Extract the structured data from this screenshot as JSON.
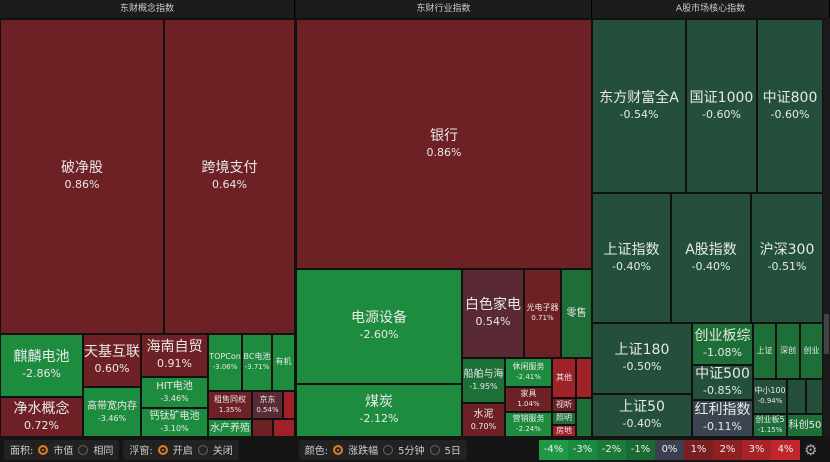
{
  "headers": [
    "东财概念指数",
    "东财行业指数",
    "A股市场核心指数"
  ],
  "chart_data": {
    "type": "treemap",
    "groups": [
      {
        "name": "东财概念指数",
        "tiles": [
          {
            "label": "破净股",
            "value": "0.86%"
          },
          {
            "label": "跨境支付",
            "value": "0.64%"
          },
          {
            "label": "麒麟电池",
            "value": "-2.86%"
          },
          {
            "label": "净水概念",
            "value": "0.72%"
          },
          {
            "label": "天基互联",
            "value": "0.60%"
          },
          {
            "label": "高带宽内存",
            "value": "-3.46%"
          },
          {
            "label": "海南自贸",
            "value": "0.91%"
          },
          {
            "label": "HIT电池",
            "value": "-3.46%"
          },
          {
            "label": "钙钛矿电池",
            "value": "-3.10%"
          },
          {
            "label": "TOPCon",
            "value": "-3.06%"
          },
          {
            "label": "BC电池",
            "value": "-3.71%"
          },
          {
            "label": "有机",
            "value": ""
          },
          {
            "label": "租售同权",
            "value": "1.35%"
          },
          {
            "label": "京东",
            "value": "0.54%"
          },
          {
            "label": "水产养殖",
            "value": ""
          }
        ]
      },
      {
        "name": "东财行业指数",
        "tiles": [
          {
            "label": "银行",
            "value": "0.86%"
          },
          {
            "label": "电源设备",
            "value": "-2.60%"
          },
          {
            "label": "煤炭",
            "value": "-2.12%"
          },
          {
            "label": "白色家电",
            "value": "0.54%"
          },
          {
            "label": "光电子器",
            "value": "0.71%"
          },
          {
            "label": "零售",
            "value": ""
          },
          {
            "label": "船舶与海",
            "value": "-1.95%"
          },
          {
            "label": "水泥",
            "value": "0.70%"
          },
          {
            "label": "休闲服务",
            "value": "-2.41%"
          },
          {
            "label": "家具",
            "value": "1.04%"
          },
          {
            "label": "营销服务",
            "value": "-2.24%"
          },
          {
            "label": "其他",
            "value": ""
          },
          {
            "label": "视听",
            "value": ""
          },
          {
            "label": "照明",
            "value": ""
          },
          {
            "label": "房地",
            "value": ""
          }
        ]
      },
      {
        "name": "A股市场核心指数",
        "tiles": [
          {
            "label": "东方财富全A",
            "value": "-0.54%"
          },
          {
            "label": "国证1000",
            "value": "-0.60%"
          },
          {
            "label": "中证800",
            "value": "-0.60%"
          },
          {
            "label": "上证指数",
            "value": "-0.40%"
          },
          {
            "label": "A股指数",
            "value": "-0.40%"
          },
          {
            "label": "沪深300",
            "value": "-0.51%"
          },
          {
            "label": "上证180",
            "value": "-0.50%"
          },
          {
            "label": "上证50",
            "value": "-0.40%"
          },
          {
            "label": "创业板综",
            "value": "-1.08%"
          },
          {
            "label": "中证500",
            "value": "-0.85%"
          },
          {
            "label": "红利指数",
            "value": "-0.11%"
          },
          {
            "label": "上证",
            "value": ""
          },
          {
            "label": "深创",
            "value": ""
          },
          {
            "label": "创业",
            "value": ""
          },
          {
            "label": "中小100",
            "value": "-0.94%"
          },
          {
            "label": "创业板5",
            "value": "-1.15%"
          },
          {
            "label": "科创50",
            "value": ""
          }
        ]
      }
    ],
    "color_scale": [
      "-4%",
      "-3%",
      "-2%",
      "-1%",
      "0%",
      "1%",
      "2%",
      "3%",
      "4%"
    ],
    "colors": {
      "up": "#6d2125",
      "down": "#1e8c3f",
      "flat": "#3a4550"
    }
  },
  "toolbar": {
    "area_label": "面积:",
    "area_options": [
      "市值",
      "相同"
    ],
    "float_label": "浮窗:",
    "float_options": [
      "开启",
      "关闭"
    ],
    "color_label": "颜色:",
    "color_options": [
      "涨跌幅",
      "5分钟",
      "5日"
    ]
  }
}
